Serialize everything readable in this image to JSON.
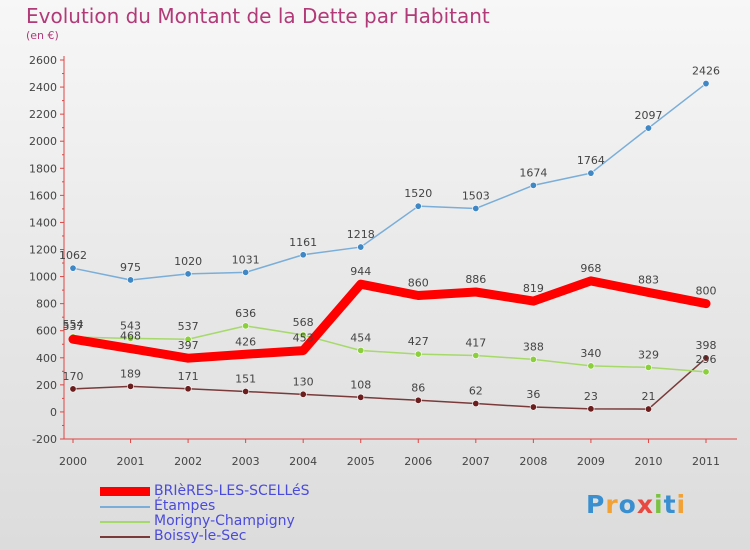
{
  "header": {
    "title": "Evolution du Montant de la Dette par Habitant",
    "subtitle": "(en €)"
  },
  "brand": {
    "text": "Proxiti",
    "letters": [
      "P",
      "r",
      "o",
      "x",
      "i",
      "t",
      "i"
    ],
    "colors": [
      "#3a8fd0",
      "#f2a134",
      "#3a8fd0",
      "#e8483f",
      "#7cc242",
      "#3a8fd0",
      "#f2a134"
    ]
  },
  "chart_data": {
    "type": "line",
    "x": [
      "2000",
      "2001",
      "2002",
      "2003",
      "2004",
      "2005",
      "2006",
      "2007",
      "2008",
      "2009",
      "2010",
      "2011"
    ],
    "ylim": [
      -200,
      2600
    ],
    "yticks": [
      -200,
      0,
      200,
      400,
      600,
      800,
      1000,
      1200,
      1400,
      1600,
      1800,
      2000,
      2200,
      2400,
      2600
    ],
    "grid": false,
    "legend_position": "bottom-left",
    "series": [
      {
        "name": "BRIèRES-LES-SCELLéS",
        "values": [
          537,
          468,
          397,
          426,
          453,
          944,
          860,
          886,
          819,
          968,
          883,
          800
        ],
        "color": "#ff0000",
        "width": 9,
        "markers": false
      },
      {
        "name": "Étampes",
        "values": [
          1062,
          975,
          1020,
          1031,
          1161,
          1218,
          1520,
          1503,
          1674,
          1764,
          2097,
          2426
        ],
        "color": "#7aaed8",
        "width": 1.5,
        "markers": true,
        "marker_color": "#3f88c5"
      },
      {
        "name": "Morigny-Champigny",
        "values": [
          554,
          543,
          537,
          636,
          568,
          454,
          427,
          417,
          388,
          340,
          329,
          296
        ],
        "color": "#a6d96a",
        "width": 1.5,
        "markers": true,
        "marker_color": "#8ccf3c"
      },
      {
        "name": "Boissy-le-Sec",
        "values": [
          170,
          189,
          171,
          151,
          130,
          108,
          86,
          62,
          36,
          23,
          21,
          398
        ],
        "color": "#7a3a3a",
        "width": 1.5,
        "markers": true,
        "marker_color": "#6b1e1e"
      }
    ]
  }
}
